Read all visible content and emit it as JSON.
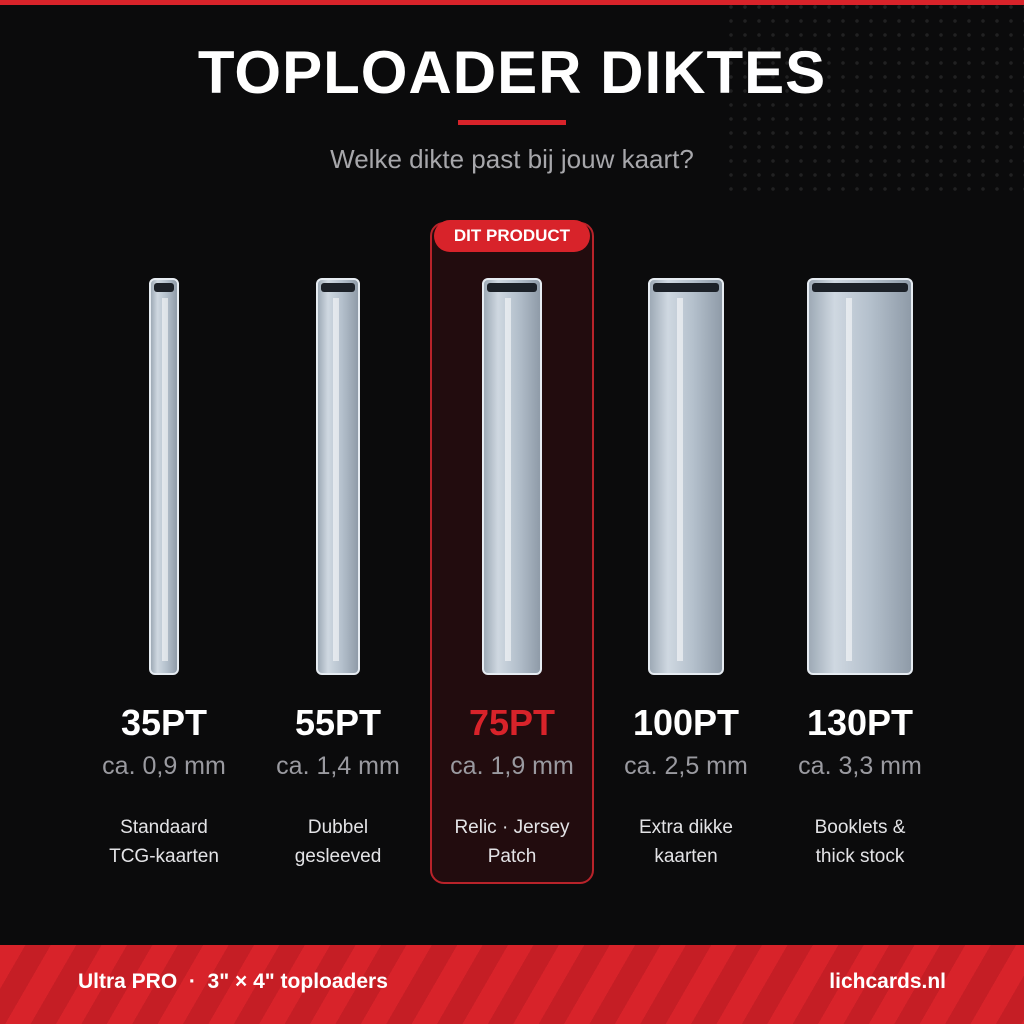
{
  "header": {
    "title": "TOPLOADER DIKTES",
    "subtitle": "Welke dikte past bij jouw kaart?"
  },
  "badge": "DIT PRODUCT",
  "items": [
    {
      "label": "35PT",
      "size": "ca. 0,9 mm",
      "description": [
        "Standaard",
        "TCG-kaarten"
      ]
    },
    {
      "label": "55PT",
      "size": "ca. 1,4 mm",
      "description": [
        "Dubbel",
        "gesleeved"
      ]
    },
    {
      "label": "75PT",
      "size": "ca. 1,9 mm",
      "description": [
        "Relic · Jersey",
        "Patch"
      ],
      "selected": true
    },
    {
      "label": "100PT",
      "size": "ca. 2,5 mm",
      "description": [
        "Extra dikke",
        "kaarten"
      ]
    },
    {
      "label": "130PT",
      "size": "ca. 3,3 mm",
      "description": [
        "Booklets &",
        "thick stock"
      ]
    }
  ],
  "footer": {
    "left": "Ultra PRO  ·  3\" × 4\" toploaders",
    "right": "lichcards.nl"
  }
}
